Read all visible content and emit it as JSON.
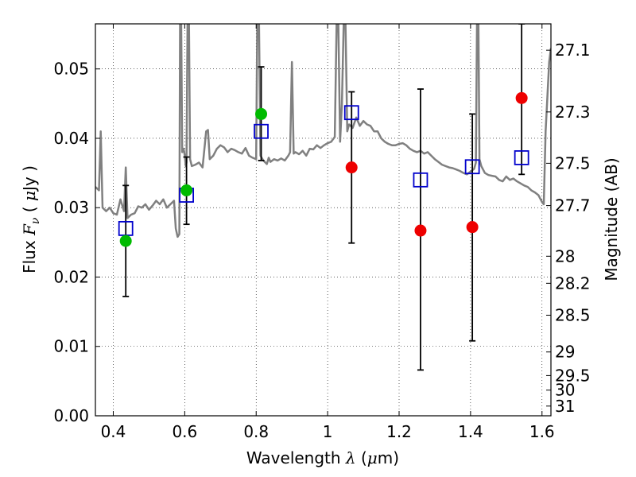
{
  "chart_data": {
    "type": "scatter",
    "xlabel": "Wavelength  λ (μm)",
    "xlabel_parts": {
      "pre": "Wavelength  ",
      "sym": "λ",
      "post": " (",
      "mu": "μ",
      "unit": "m)"
    },
    "ylabel_parts": {
      "pre": "Flux  ",
      "sym": "F",
      "sub": "ν",
      "post": "  ( ",
      "mu": "μ",
      "unit": "Jy )"
    },
    "ylabel_right": "Magnitude (AB)",
    "xlim": [
      0.35,
      1.625
    ],
    "ylim": [
      0.0,
      0.0565
    ],
    "grid": true,
    "x_ticks": [
      0.4,
      0.6,
      0.8,
      1.0,
      1.2,
      1.4,
      1.6
    ],
    "x_tick_labels": [
      "0.4",
      "0.6",
      "0.8",
      "1",
      "1.2",
      "1.4",
      "1.6"
    ],
    "y_ticks": [
      0.0,
      0.01,
      0.02,
      0.03,
      0.04,
      0.05
    ],
    "y_tick_labels": [
      "0.00",
      "0.01",
      "0.02",
      "0.03",
      "0.04",
      "0.05"
    ],
    "right_ticks": [
      {
        "label": "27.1",
        "flux": 0.0527
      },
      {
        "label": "27.3",
        "flux": 0.0438
      },
      {
        "label": "27.5",
        "flux": 0.0364
      },
      {
        "label": "27.7",
        "flux": 0.0303
      },
      {
        "label": "28",
        "flux": 0.023
      },
      {
        "label": "28.2",
        "flux": 0.0191
      },
      {
        "label": "28.5",
        "flux": 0.0145
      },
      {
        "label": "29",
        "flux": 0.0092
      },
      {
        "label": "29.5",
        "flux": 0.0058
      },
      {
        "label": "30",
        "flux": 0.0037
      },
      {
        "label": "31",
        "flux": 0.0014
      }
    ],
    "series": [
      {
        "role": "model spectrum",
        "kind": "line",
        "color": "#808080",
        "points": [
          [
            0.35,
            0.033
          ],
          [
            0.36,
            0.0325
          ],
          [
            0.365,
            0.041
          ],
          [
            0.37,
            0.03
          ],
          [
            0.38,
            0.0295
          ],
          [
            0.39,
            0.03
          ],
          [
            0.4,
            0.0292
          ],
          [
            0.41,
            0.029
          ],
          [
            0.42,
            0.0312
          ],
          [
            0.43,
            0.0295
          ],
          [
            0.435,
            0.0358
          ],
          [
            0.44,
            0.0285
          ],
          [
            0.45,
            0.029
          ],
          [
            0.46,
            0.0292
          ],
          [
            0.47,
            0.0302
          ],
          [
            0.48,
            0.03
          ],
          [
            0.49,
            0.0305
          ],
          [
            0.5,
            0.0297
          ],
          [
            0.51,
            0.0303
          ],
          [
            0.52,
            0.031
          ],
          [
            0.53,
            0.0305
          ],
          [
            0.54,
            0.0312
          ],
          [
            0.55,
            0.03
          ],
          [
            0.56,
            0.0305
          ],
          [
            0.57,
            0.031
          ],
          [
            0.575,
            0.027
          ],
          [
            0.58,
            0.0258
          ],
          [
            0.585,
            0.0262
          ],
          [
            0.587,
            0.0565
          ],
          [
            0.59,
            0.0565
          ],
          [
            0.593,
            0.038
          ],
          [
            0.597,
            0.0385
          ],
          [
            0.6,
            0.0375
          ],
          [
            0.603,
            0.036
          ],
          [
            0.605,
            0.0365
          ],
          [
            0.608,
            0.0565
          ],
          [
            0.612,
            0.0565
          ],
          [
            0.615,
            0.037
          ],
          [
            0.62,
            0.036
          ],
          [
            0.63,
            0.0362
          ],
          [
            0.64,
            0.0365
          ],
          [
            0.65,
            0.0358
          ],
          [
            0.66,
            0.041
          ],
          [
            0.665,
            0.0412
          ],
          [
            0.67,
            0.037
          ],
          [
            0.68,
            0.0375
          ],
          [
            0.69,
            0.0385
          ],
          [
            0.7,
            0.039
          ],
          [
            0.71,
            0.0387
          ],
          [
            0.72,
            0.038
          ],
          [
            0.73,
            0.0385
          ],
          [
            0.74,
            0.0383
          ],
          [
            0.75,
            0.038
          ],
          [
            0.76,
            0.0378
          ],
          [
            0.77,
            0.0386
          ],
          [
            0.78,
            0.0375
          ],
          [
            0.79,
            0.0372
          ],
          [
            0.8,
            0.037
          ],
          [
            0.803,
            0.0565
          ],
          [
            0.808,
            0.0565
          ],
          [
            0.812,
            0.0375
          ],
          [
            0.82,
            0.0368
          ],
          [
            0.83,
            0.0363
          ],
          [
            0.835,
            0.0372
          ],
          [
            0.84,
            0.0366
          ],
          [
            0.85,
            0.037
          ],
          [
            0.86,
            0.0368
          ],
          [
            0.87,
            0.0371
          ],
          [
            0.88,
            0.0368
          ],
          [
            0.89,
            0.0375
          ],
          [
            0.895,
            0.038
          ],
          [
            0.9,
            0.051
          ],
          [
            0.905,
            0.0378
          ],
          [
            0.91,
            0.038
          ],
          [
            0.92,
            0.0377
          ],
          [
            0.93,
            0.0382
          ],
          [
            0.94,
            0.0375
          ],
          [
            0.95,
            0.0385
          ],
          [
            0.96,
            0.0384
          ],
          [
            0.97,
            0.039
          ],
          [
            0.98,
            0.0386
          ],
          [
            0.99,
            0.039
          ],
          [
            1.0,
            0.0393
          ],
          [
            1.01,
            0.0395
          ],
          [
            1.02,
            0.0402
          ],
          [
            1.025,
            0.0565
          ],
          [
            1.03,
            0.0565
          ],
          [
            1.035,
            0.0395
          ],
          [
            1.04,
            0.045
          ],
          [
            1.045,
            0.0565
          ],
          [
            1.05,
            0.0565
          ],
          [
            1.055,
            0.041
          ],
          [
            1.06,
            0.042
          ],
          [
            1.07,
            0.0415
          ],
          [
            1.08,
            0.043
          ],
          [
            1.09,
            0.0418
          ],
          [
            1.1,
            0.0425
          ],
          [
            1.11,
            0.042
          ],
          [
            1.12,
            0.0418
          ],
          [
            1.13,
            0.041
          ],
          [
            1.14,
            0.041
          ],
          [
            1.15,
            0.04
          ],
          [
            1.16,
            0.0395
          ],
          [
            1.17,
            0.0392
          ],
          [
            1.18,
            0.039
          ],
          [
            1.19,
            0.039
          ],
          [
            1.2,
            0.0392
          ],
          [
            1.21,
            0.0393
          ],
          [
            1.22,
            0.039
          ],
          [
            1.23,
            0.0385
          ],
          [
            1.24,
            0.0382
          ],
          [
            1.25,
            0.038
          ],
          [
            1.26,
            0.0382
          ],
          [
            1.27,
            0.0378
          ],
          [
            1.28,
            0.038
          ],
          [
            1.29,
            0.0375
          ],
          [
            1.3,
            0.037
          ],
          [
            1.31,
            0.0366
          ],
          [
            1.32,
            0.0362
          ],
          [
            1.33,
            0.036
          ],
          [
            1.34,
            0.0358
          ],
          [
            1.35,
            0.0357
          ],
          [
            1.36,
            0.0355
          ],
          [
            1.37,
            0.0353
          ],
          [
            1.38,
            0.035
          ],
          [
            1.39,
            0.0348
          ],
          [
            1.4,
            0.0352
          ],
          [
            1.41,
            0.0356
          ],
          [
            1.415,
            0.0365
          ],
          [
            1.418,
            0.0565
          ],
          [
            1.422,
            0.0565
          ],
          [
            1.425,
            0.037
          ],
          [
            1.43,
            0.036
          ],
          [
            1.44,
            0.035
          ],
          [
            1.45,
            0.0347
          ],
          [
            1.46,
            0.0346
          ],
          [
            1.47,
            0.0345
          ],
          [
            1.48,
            0.034
          ],
          [
            1.49,
            0.0338
          ],
          [
            1.5,
            0.0345
          ],
          [
            1.51,
            0.034
          ],
          [
            1.52,
            0.0342
          ],
          [
            1.53,
            0.0338
          ],
          [
            1.54,
            0.0335
          ],
          [
            1.55,
            0.0332
          ],
          [
            1.56,
            0.033
          ],
          [
            1.57,
            0.0325
          ],
          [
            1.58,
            0.0322
          ],
          [
            1.59,
            0.0318
          ],
          [
            1.6,
            0.0308
          ],
          [
            1.605,
            0.0305
          ],
          [
            1.61,
            0.041
          ],
          [
            1.62,
            0.051
          ],
          [
            1.625,
            0.053
          ]
        ]
      },
      {
        "role": "model photometry",
        "kind": "square",
        "color": "#0000cc",
        "points": [
          [
            0.435,
            0.027
          ],
          [
            0.605,
            0.0318
          ],
          [
            0.814,
            0.041
          ],
          [
            1.067,
            0.0437
          ],
          [
            1.26,
            0.034
          ],
          [
            1.405,
            0.0359
          ],
          [
            1.543,
            0.0372
          ]
        ]
      },
      {
        "role": "detections",
        "kind": "circle",
        "color": "#00bb00",
        "points": [
          [
            0.435,
            0.0252
          ],
          [
            0.605,
            0.0325
          ],
          [
            0.814,
            0.0435
          ]
        ]
      },
      {
        "role": "non-detections",
        "kind": "circle",
        "color": "#ee0000",
        "points": [
          [
            1.067,
            0.0358
          ],
          [
            1.26,
            0.0267
          ],
          [
            1.405,
            0.0272
          ],
          [
            1.543,
            0.0458
          ]
        ]
      }
    ],
    "errorbars": [
      {
        "x": 0.435,
        "y_low": 0.0172,
        "y_high": 0.0332
      },
      {
        "x": 0.605,
        "y_low": 0.0276,
        "y_high": 0.0373
      },
      {
        "x": 0.814,
        "y_low": 0.0368,
        "y_high": 0.0503
      },
      {
        "x": 1.067,
        "y_low": 0.0249,
        "y_high": 0.0467
      },
      {
        "x": 1.26,
        "y_low": 0.0066,
        "y_high": 0.0471
      },
      {
        "x": 1.405,
        "y_low": 0.0108,
        "y_high": 0.0435
      },
      {
        "x": 1.543,
        "y_low": 0.0348,
        "y_high": 0.0565
      }
    ]
  }
}
